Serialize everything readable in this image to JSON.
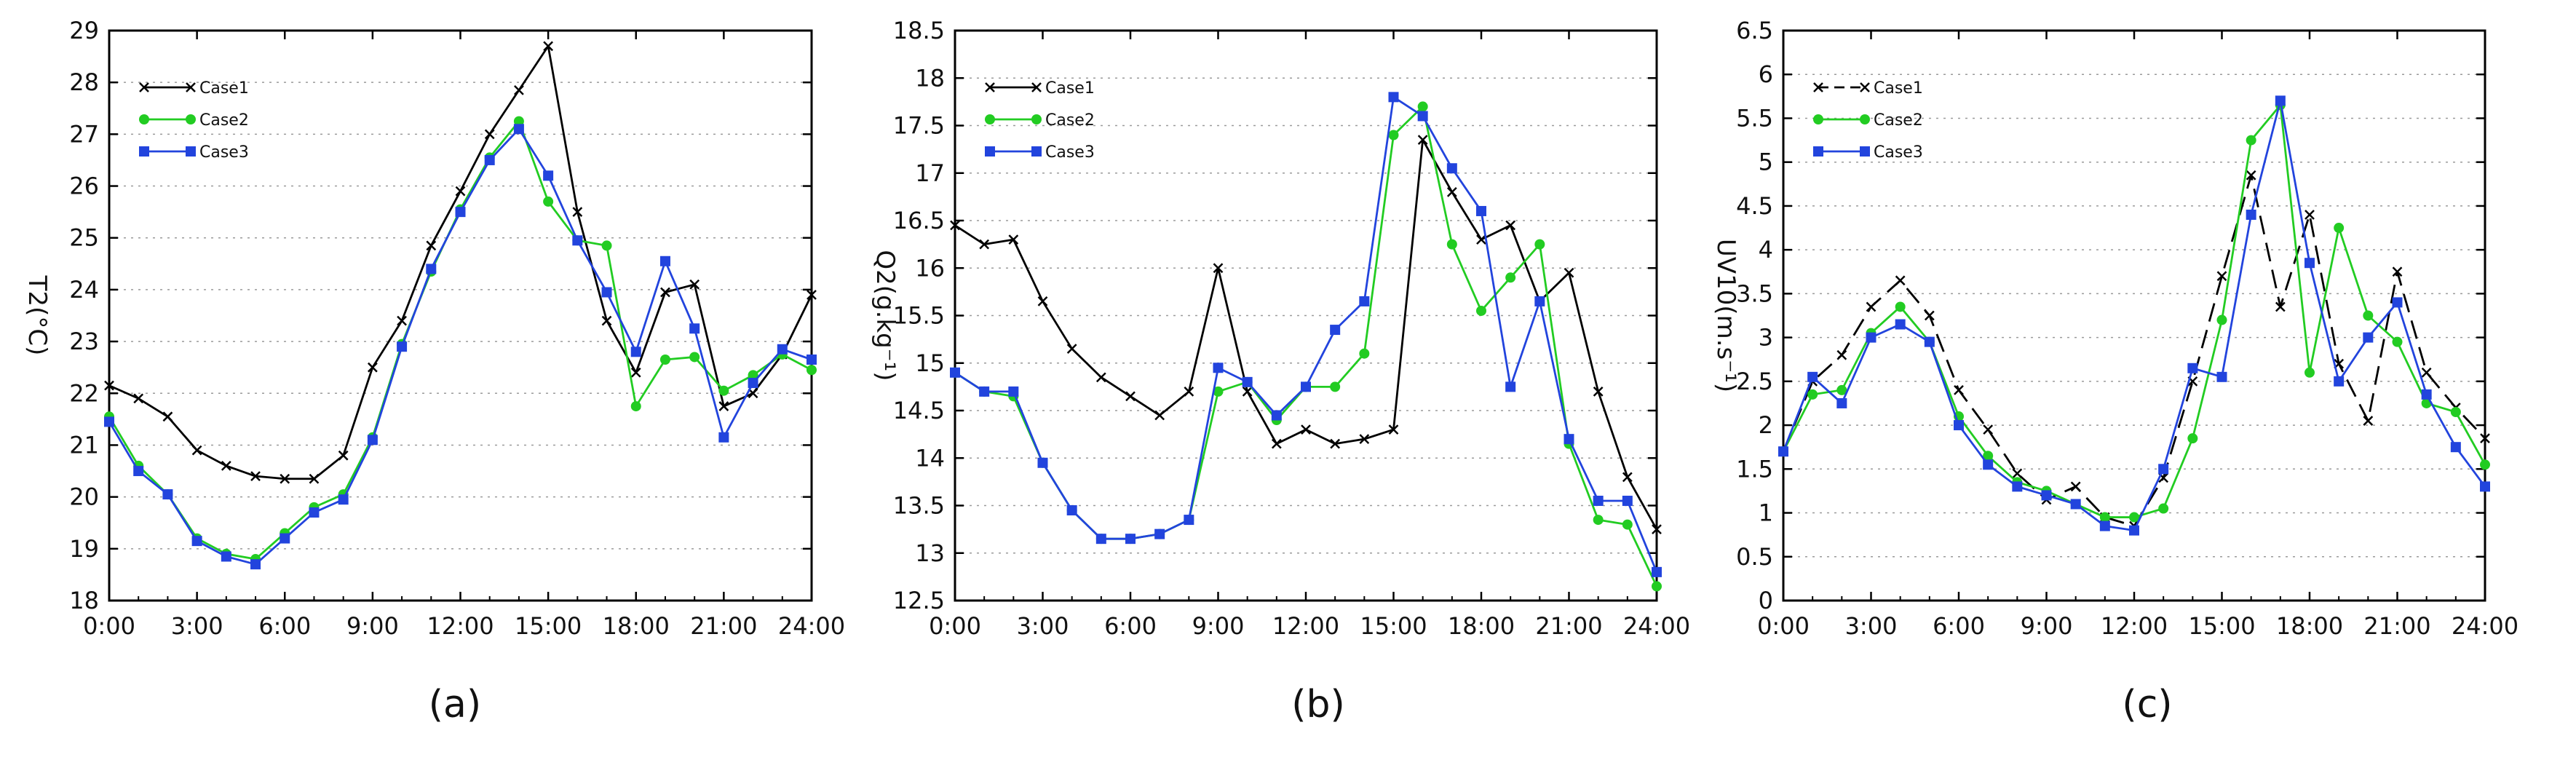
{
  "chart_data": [
    {
      "type": "line",
      "panel_label": "(a)",
      "ylabel": "T2(°C)",
      "ylim": [
        18,
        29
      ],
      "yticks": [
        18,
        19,
        20,
        21,
        22,
        23,
        24,
        25,
        26,
        27,
        28,
        29
      ],
      "xlim": [
        0,
        24
      ],
      "xticks": [
        "0:00",
        "3:00",
        "6:00",
        "9:00",
        "12:00",
        "15:00",
        "18:00",
        "21:00",
        "24:00"
      ],
      "x_hours": [
        0,
        1,
        2,
        3,
        4,
        5,
        6,
        7,
        8,
        9,
        10,
        11,
        12,
        13,
        14,
        15,
        16,
        17,
        18,
        19,
        20,
        21,
        22,
        23,
        24
      ],
      "grid": "horizontal dotted",
      "legend_position": "top-left",
      "series": [
        {
          "name": "Case1",
          "color": "#000000",
          "marker": "x",
          "dash": "solid",
          "values": [
            22.15,
            21.9,
            21.55,
            20.9,
            20.6,
            20.4,
            20.35,
            20.35,
            20.8,
            22.5,
            23.4,
            24.85,
            25.9,
            27.0,
            27.85,
            28.7,
            25.5,
            23.4,
            22.4,
            23.95,
            24.1,
            21.75,
            22.0,
            22.75,
            23.9
          ]
        },
        {
          "name": "Case2",
          "color": "#22cc22",
          "marker": "circle",
          "dash": "solid",
          "values": [
            21.55,
            20.6,
            20.05,
            19.2,
            18.9,
            18.8,
            19.3,
            19.8,
            20.05,
            21.15,
            22.95,
            24.35,
            25.55,
            26.55,
            27.25,
            25.7,
            24.95,
            24.85,
            21.75,
            22.65,
            22.7,
            22.05,
            22.35,
            22.75,
            22.45
          ]
        },
        {
          "name": "Case3",
          "color": "#2244dd",
          "marker": "square",
          "dash": "solid",
          "values": [
            21.45,
            20.5,
            20.05,
            19.15,
            18.85,
            18.7,
            19.2,
            19.7,
            19.95,
            21.1,
            22.9,
            24.4,
            25.5,
            26.5,
            27.1,
            26.2,
            24.95,
            23.95,
            22.8,
            24.55,
            23.25,
            21.15,
            22.2,
            22.85,
            22.65
          ]
        }
      ]
    },
    {
      "type": "line",
      "panel_label": "(b)",
      "ylabel": "Q2(g.kg⁻¹)",
      "ylim": [
        12.5,
        18.5
      ],
      "yticks": [
        "12.5",
        "13",
        "13.5",
        "14",
        "14.5",
        "15",
        "15.5",
        "16",
        "16.5",
        "17",
        "17.5",
        "18",
        "18.5"
      ],
      "xlim": [
        0,
        24
      ],
      "xticks": [
        "0:00",
        "3:00",
        "6:00",
        "9:00",
        "12:00",
        "15:00",
        "18:00",
        "21:00",
        "24:00"
      ],
      "x_hours": [
        0,
        1,
        2,
        3,
        4,
        5,
        6,
        7,
        8,
        9,
        10,
        11,
        12,
        13,
        14,
        15,
        16,
        17,
        18,
        19,
        20,
        21,
        22,
        23,
        24
      ],
      "grid": "horizontal dotted",
      "legend_position": "top-left",
      "series": [
        {
          "name": "Case1",
          "color": "#000000",
          "marker": "x",
          "dash": "solid",
          "values": [
            16.45,
            16.25,
            16.3,
            15.65,
            15.15,
            14.85,
            14.65,
            14.45,
            14.7,
            16.0,
            14.7,
            14.15,
            14.3,
            14.15,
            14.2,
            14.3,
            17.35,
            16.8,
            16.3,
            16.45,
            15.65,
            15.95,
            14.7,
            13.8,
            13.25
          ]
        },
        {
          "name": "Case2",
          "color": "#22cc22",
          "marker": "circle",
          "dash": "solid",
          "values": [
            14.9,
            14.7,
            14.65,
            13.95,
            13.45,
            13.15,
            13.15,
            13.2,
            13.35,
            14.7,
            14.8,
            14.4,
            14.75,
            14.75,
            15.1,
            17.4,
            17.7,
            16.25,
            15.55,
            15.9,
            16.25,
            14.15,
            13.35,
            13.3,
            12.65
          ]
        },
        {
          "name": "Case3",
          "color": "#2244dd",
          "marker": "square",
          "dash": "solid",
          "values": [
            14.9,
            14.7,
            14.7,
            13.95,
            13.45,
            13.15,
            13.15,
            13.2,
            13.35,
            14.95,
            14.8,
            14.45,
            14.75,
            15.35,
            15.65,
            17.8,
            17.6,
            17.05,
            16.6,
            14.75,
            15.65,
            14.2,
            13.55,
            13.55,
            12.8
          ]
        }
      ]
    },
    {
      "type": "line",
      "panel_label": "(c)",
      "ylabel": "UV10(m.s⁻¹)",
      "ylim": [
        0,
        6.5
      ],
      "yticks": [
        "0",
        "0.5",
        "1",
        "1.5",
        "2",
        "2.5",
        "3",
        "3.5",
        "4",
        "4.5",
        "5",
        "5.5",
        "6",
        "6.5"
      ],
      "xlim": [
        0,
        24
      ],
      "xticks": [
        "0:00",
        "3:00",
        "6:00",
        "9:00",
        "12:00",
        "15:00",
        "18:00",
        "21:00",
        "24:00"
      ],
      "x_hours": [
        0,
        1,
        2,
        3,
        4,
        5,
        6,
        7,
        8,
        9,
        10,
        11,
        12,
        13,
        14,
        15,
        16,
        17,
        18,
        19,
        20,
        21,
        22,
        23,
        24
      ],
      "grid": "horizontal dotted",
      "legend_position": "top-left",
      "series": [
        {
          "name": "Case1",
          "color": "#000000",
          "marker": "x",
          "dash": "dashed",
          "values": [
            1.7,
            2.5,
            2.8,
            3.35,
            3.65,
            3.25,
            2.4,
            1.95,
            1.45,
            1.15,
            1.3,
            0.95,
            0.85,
            1.4,
            2.5,
            3.7,
            4.85,
            3.35,
            4.4,
            2.7,
            2.05,
            3.75,
            2.6,
            2.2,
            1.85
          ]
        },
        {
          "name": "Case2",
          "color": "#22cc22",
          "marker": "circle",
          "dash": "solid",
          "values": [
            1.7,
            2.35,
            2.4,
            3.05,
            3.35,
            2.95,
            2.1,
            1.65,
            1.35,
            1.25,
            1.1,
            0.95,
            0.95,
            1.05,
            1.85,
            3.2,
            5.25,
            5.65,
            2.6,
            4.25,
            3.25,
            2.95,
            2.25,
            2.15,
            1.55
          ]
        },
        {
          "name": "Case3",
          "color": "#2244dd",
          "marker": "square",
          "dash": "solid",
          "values": [
            1.7,
            2.55,
            2.25,
            3.0,
            3.15,
            2.95,
            2.0,
            1.55,
            1.3,
            1.2,
            1.1,
            0.85,
            0.8,
            1.5,
            2.65,
            2.55,
            4.4,
            5.7,
            3.85,
            2.5,
            3.0,
            3.4,
            2.35,
            1.75,
            1.3
          ]
        }
      ]
    }
  ]
}
